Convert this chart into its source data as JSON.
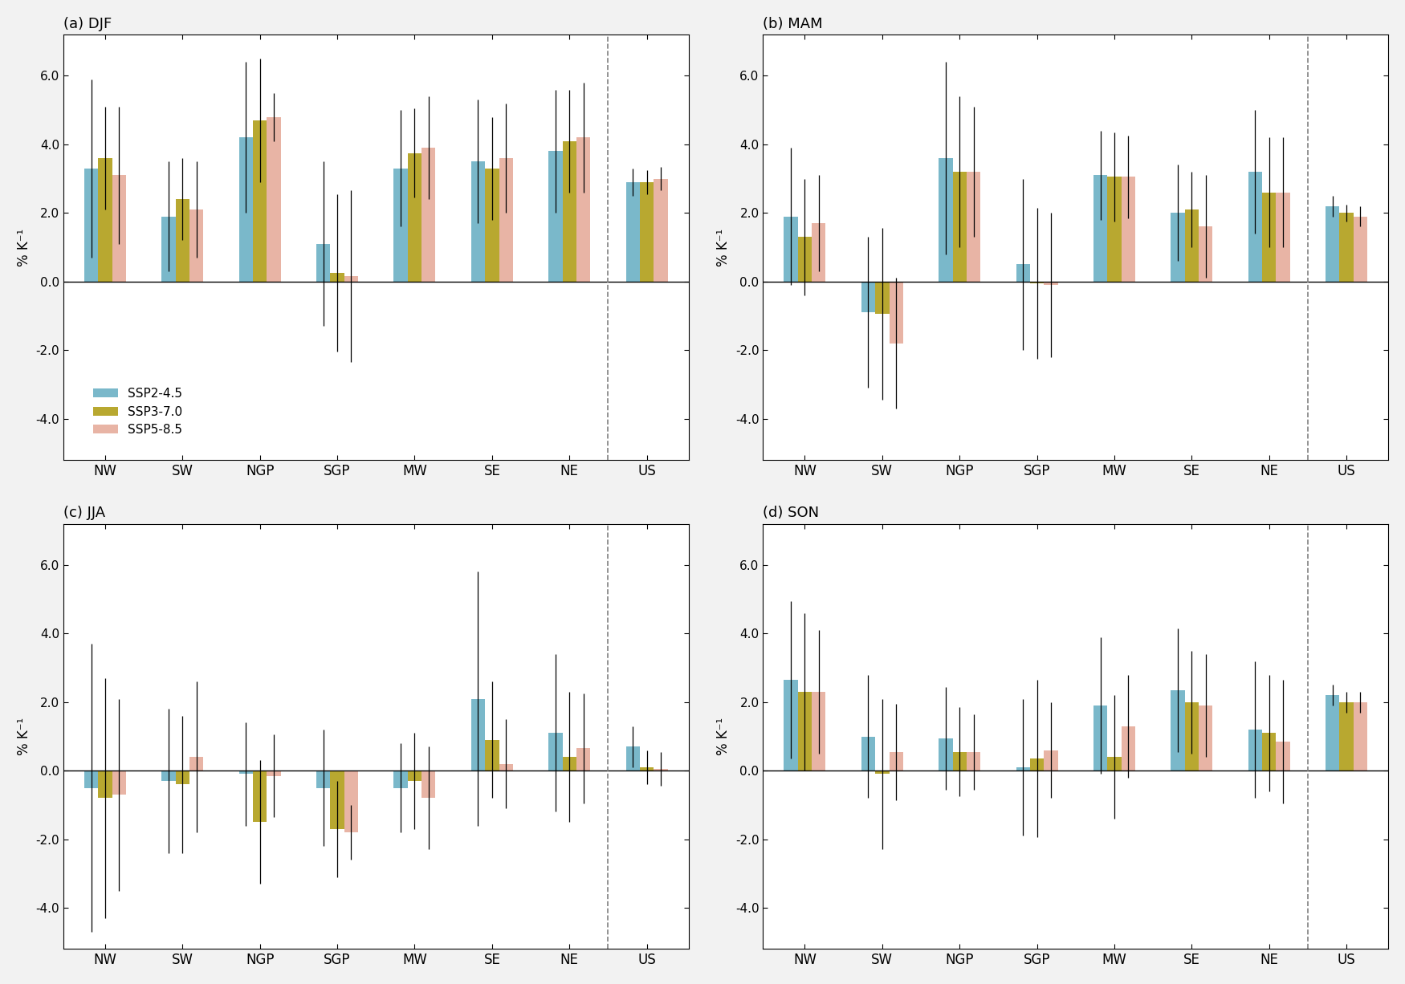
{
  "seasons": [
    "DJF",
    "MAM",
    "JJA",
    "SON"
  ],
  "season_labels": [
    "(a) DJF",
    "(b) MAM",
    "(c) JJA",
    "(d) SON"
  ],
  "regions": [
    "NW",
    "SW",
    "NGP",
    "SGP",
    "MW",
    "SE",
    "NE",
    "US"
  ],
  "colors": {
    "SSP2-4.5": "#7ab8ca",
    "SSP3-7.0": "#b8a830",
    "SSP5-8.5": "#e8b4a5"
  },
  "legend_labels": [
    "SSP2-4.5",
    "SSP3-7.0",
    "SSP5-8.5"
  ],
  "ylabel": "% K⁻¹",
  "ylim": [
    -5.2,
    7.2
  ],
  "yticks": [
    -4.0,
    -2.0,
    0.0,
    2.0,
    4.0,
    6.0
  ],
  "bar_values": {
    "DJF": {
      "SSP2-4.5": [
        3.3,
        1.9,
        4.2,
        1.1,
        3.3,
        3.5,
        3.8,
        2.9
      ],
      "SSP3-7.0": [
        3.6,
        2.4,
        4.7,
        0.25,
        3.75,
        3.3,
        4.1,
        2.9
      ],
      "SSP5-8.5": [
        3.1,
        2.1,
        4.8,
        0.15,
        3.9,
        3.6,
        4.2,
        3.0
      ]
    },
    "MAM": {
      "SSP2-4.5": [
        1.9,
        -0.9,
        3.6,
        0.5,
        3.1,
        2.0,
        3.2,
        2.2
      ],
      "SSP3-7.0": [
        1.3,
        -0.95,
        3.2,
        -0.05,
        3.05,
        2.1,
        2.6,
        2.0
      ],
      "SSP5-8.5": [
        1.7,
        -1.8,
        3.2,
        -0.1,
        3.05,
        1.6,
        2.6,
        1.9
      ]
    },
    "JJA": {
      "SSP2-4.5": [
        -0.5,
        -0.3,
        -0.1,
        -0.5,
        -0.5,
        2.1,
        1.1,
        0.7
      ],
      "SSP3-7.0": [
        -0.8,
        -0.4,
        -1.5,
        -1.7,
        -0.3,
        0.9,
        0.4,
        0.1
      ],
      "SSP5-8.5": [
        -0.7,
        0.4,
        -0.15,
        -1.8,
        -0.8,
        0.2,
        0.65,
        0.05
      ]
    },
    "SON": {
      "SSP2-4.5": [
        2.65,
        1.0,
        0.95,
        0.1,
        1.9,
        2.35,
        1.2,
        2.2
      ],
      "SSP3-7.0": [
        2.3,
        -0.1,
        0.55,
        0.35,
        0.4,
        2.0,
        1.1,
        2.0
      ],
      "SSP5-8.5": [
        2.3,
        0.55,
        0.55,
        0.6,
        1.3,
        1.9,
        0.85,
        2.0
      ]
    }
  },
  "error_bars": {
    "DJF": {
      "SSP2-4.5": [
        2.6,
        1.6,
        2.2,
        2.4,
        1.7,
        1.8,
        1.8,
        0.4
      ],
      "SSP3-7.0": [
        1.5,
        1.2,
        1.8,
        2.3,
        1.3,
        1.5,
        1.5,
        0.35
      ],
      "SSP5-8.5": [
        2.0,
        1.4,
        0.7,
        2.5,
        1.5,
        1.6,
        1.6,
        0.35
      ]
    },
    "MAM": {
      "SSP2-4.5": [
        2.0,
        2.2,
        2.8,
        2.5,
        1.3,
        1.4,
        1.8,
        0.3
      ],
      "SSP3-7.0": [
        1.7,
        2.5,
        2.2,
        2.2,
        1.3,
        1.1,
        1.6,
        0.25
      ],
      "SSP5-8.5": [
        1.4,
        1.9,
        1.9,
        2.1,
        1.2,
        1.5,
        1.6,
        0.3
      ]
    },
    "JJA": {
      "SSP2-4.5": [
        4.2,
        2.1,
        1.5,
        1.7,
        1.3,
        3.7,
        2.3,
        0.6
      ],
      "SSP3-7.0": [
        3.5,
        2.0,
        1.8,
        1.4,
        1.4,
        1.7,
        1.9,
        0.5
      ],
      "SSP5-8.5": [
        2.8,
        2.2,
        1.2,
        0.8,
        1.5,
        1.3,
        1.6,
        0.5
      ]
    },
    "SON": {
      "SSP2-4.5": [
        2.3,
        1.8,
        1.5,
        2.0,
        2.0,
        1.8,
        2.0,
        0.3
      ],
      "SSP3-7.0": [
        2.3,
        2.2,
        1.3,
        2.3,
        1.8,
        1.5,
        1.7,
        0.3
      ],
      "SSP5-8.5": [
        1.8,
        1.4,
        1.1,
        1.4,
        1.5,
        1.5,
        1.8,
        0.3
      ]
    }
  },
  "bg_color": "#f2f2f2",
  "plot_bg_color": "#ffffff"
}
